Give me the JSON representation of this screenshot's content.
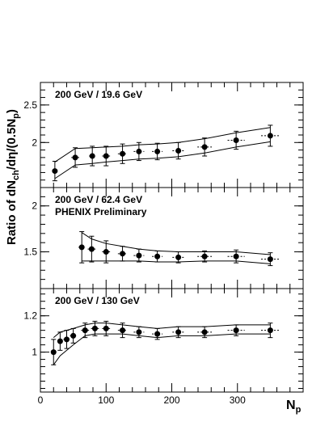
{
  "chart_data": {
    "type": "scatter",
    "y_axis_label": "Ratio of dN",
    "y_axis_label_sub_ch": "ch",
    "y_axis_label_part2": "/dη/(0.5N",
    "y_axis_label_sub_p": "p",
    "y_axis_label_close": ")",
    "x_axis_label": "N",
    "x_axis_label_sub": "p",
    "x_range": [
      0,
      400
    ],
    "x_ticks": [
      0,
      100,
      200,
      300
    ],
    "panels": [
      {
        "title": "200 GeV / 19.6 GeV",
        "subtitle": "",
        "ylim": [
          1.4,
          2.8
        ],
        "y_ticks": [
          2.0,
          2.5
        ],
        "y_tick_labels": [
          "2",
          "2.5"
        ],
        "points": [
          {
            "x": 22,
            "y": 1.62
          },
          {
            "x": 53,
            "y": 1.8
          },
          {
            "x": 79,
            "y": 1.82
          },
          {
            "x": 100,
            "y": 1.82
          },
          {
            "x": 125,
            "y": 1.85
          },
          {
            "x": 150,
            "y": 1.88
          },
          {
            "x": 178,
            "y": 1.88
          },
          {
            "x": 210,
            "y": 1.89
          },
          {
            "x": 250,
            "y": 1.94
          },
          {
            "x": 298,
            "y": 2.03
          },
          {
            "x": 350,
            "y": 2.09
          }
        ],
        "y_errors": [
          0.13,
          0.13,
          0.13,
          0.13,
          0.13,
          0.12,
          0.11,
          0.11,
          0.12,
          0.12,
          0.14
        ],
        "x_errors": [
          0,
          6,
          5,
          6,
          7,
          8,
          8,
          9,
          11,
          13,
          14
        ],
        "upper_band": [
          1.74,
          1.92,
          1.93,
          1.94,
          1.95,
          1.97,
          1.98,
          2.0,
          2.05,
          2.13,
          2.2
        ],
        "lower_band": [
          1.52,
          1.7,
          1.72,
          1.74,
          1.76,
          1.78,
          1.79,
          1.81,
          1.86,
          1.94,
          2.01
        ]
      },
      {
        "title": "200 GeV / 62.4 GeV",
        "subtitle": "PHENIX Preliminary",
        "ylim": [
          1.1,
          2.2
        ],
        "y_ticks": [
          1.5,
          2.0
        ],
        "y_tick_labels": [
          "1.5",
          "2"
        ],
        "points": [
          {
            "x": 63,
            "y": 1.55
          },
          {
            "x": 78,
            "y": 1.53
          },
          {
            "x": 100,
            "y": 1.5
          },
          {
            "x": 125,
            "y": 1.48
          },
          {
            "x": 150,
            "y": 1.46
          },
          {
            "x": 178,
            "y": 1.45
          },
          {
            "x": 210,
            "y": 1.44
          },
          {
            "x": 250,
            "y": 1.45
          },
          {
            "x": 298,
            "y": 1.45
          },
          {
            "x": 350,
            "y": 1.42
          }
        ],
        "y_errors": [
          0.17,
          0.14,
          0.12,
          0.08,
          0.07,
          0.06,
          0.06,
          0.06,
          0.07,
          0.07
        ],
        "x_errors": [
          5,
          6,
          6,
          7,
          8,
          8,
          9,
          11,
          13,
          14
        ],
        "upper_band": [
          1.71,
          1.64,
          1.59,
          1.56,
          1.53,
          1.51,
          1.5,
          1.5,
          1.5,
          1.47
        ],
        "lower_band": [
          1.4,
          1.4,
          1.4,
          1.4,
          1.4,
          1.39,
          1.39,
          1.4,
          1.4,
          1.37
        ]
      },
      {
        "title": "200 GeV / 130 GeV",
        "subtitle": "",
        "ylim": [
          0.78,
          1.35
        ],
        "y_ticks": [
          1.0,
          1.2
        ],
        "y_tick_labels": [
          "1",
          "1.2"
        ],
        "points": [
          {
            "x": 20,
            "y": 1.0
          },
          {
            "x": 30,
            "y": 1.06
          },
          {
            "x": 40,
            "y": 1.07
          },
          {
            "x": 50,
            "y": 1.09
          },
          {
            "x": 68,
            "y": 1.12
          },
          {
            "x": 83,
            "y": 1.13
          },
          {
            "x": 100,
            "y": 1.13
          },
          {
            "x": 125,
            "y": 1.12
          },
          {
            "x": 150,
            "y": 1.11
          },
          {
            "x": 178,
            "y": 1.1
          },
          {
            "x": 210,
            "y": 1.11
          },
          {
            "x": 250,
            "y": 1.11
          },
          {
            "x": 298,
            "y": 1.12
          },
          {
            "x": 350,
            "y": 1.12
          }
        ],
        "y_errors": [
          0.07,
          0.05,
          0.05,
          0.04,
          0.04,
          0.04,
          0.04,
          0.04,
          0.03,
          0.03,
          0.03,
          0.03,
          0.03,
          0.04
        ],
        "x_errors": [
          0,
          4,
          5,
          5,
          6,
          6,
          6,
          7,
          8,
          8,
          9,
          11,
          13,
          14
        ],
        "upper_band": [
          1.08,
          1.11,
          1.12,
          1.13,
          1.15,
          1.16,
          1.16,
          1.15,
          1.14,
          1.13,
          1.14,
          1.14,
          1.15,
          1.15
        ],
        "lower_band": [
          0.93,
          0.98,
          1.01,
          1.04,
          1.09,
          1.1,
          1.1,
          1.1,
          1.09,
          1.08,
          1.09,
          1.09,
          1.1,
          1.1
        ]
      }
    ]
  }
}
